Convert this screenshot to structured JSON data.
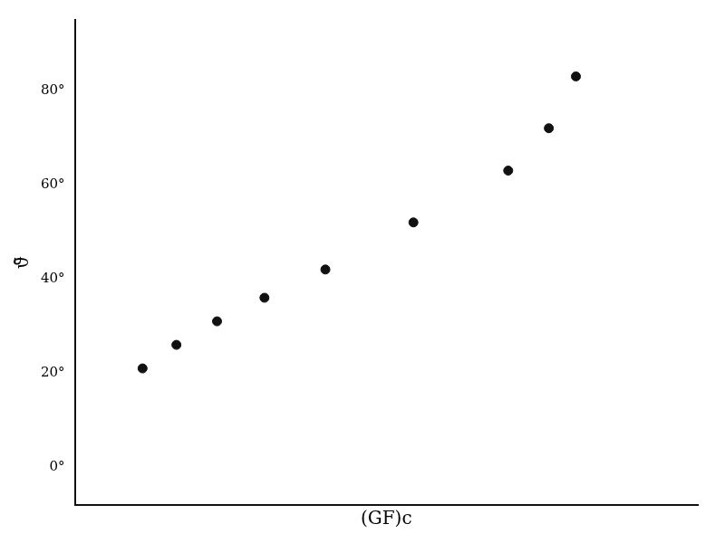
{
  "chart_data": {
    "type": "scatter",
    "x_label": "(GF)c",
    "y_label": "ϑ̄",
    "x": [
      0.8,
      1.3,
      1.9,
      2.6,
      3.5,
      4.8,
      6.2,
      6.8,
      7.2
    ],
    "values": [
      21,
      26,
      31,
      36,
      42,
      52,
      63,
      72,
      83
    ],
    "color": "#111111",
    "marker": "circle",
    "xlim": [
      -0.2,
      9
    ],
    "xticks": [],
    "ylim": [
      -8,
      95
    ],
    "yticks": [
      {
        "value": 0,
        "label": "0°"
      },
      {
        "value": 20,
        "label": "20°"
      },
      {
        "value": 40,
        "label": "40°"
      },
      {
        "value": 60,
        "label": "60°"
      },
      {
        "value": 80,
        "label": "80°"
      }
    ],
    "tick_labels": "y",
    "grid": false
  }
}
